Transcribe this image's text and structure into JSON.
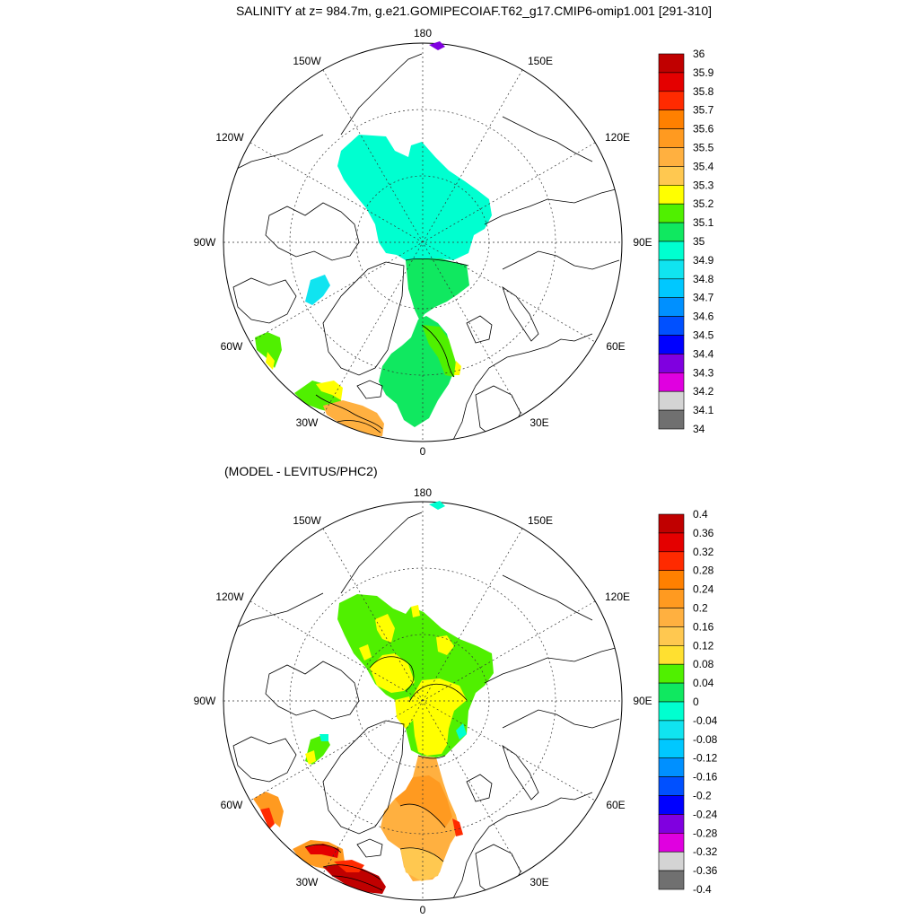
{
  "title": "SALINITY at z= 984.7m, g.e21.GOMIPECOIAF.T62_g17.CMIP6-omip1.001 [291-310]",
  "subtitle": "(MODEL - LEVITUS/PHC2)",
  "longitude_labels": [
    "180",
    "150E",
    "120E",
    "90E",
    "60E",
    "30E",
    "0",
    "30W",
    "60W",
    "90W",
    "120W",
    "150W"
  ],
  "top_panel": {
    "colorbar": {
      "labels": [
        "36",
        "35.9",
        "35.8",
        "35.7",
        "35.6",
        "35.5",
        "35.4",
        "35.3",
        "35.2",
        "35.1",
        "35",
        "34.9",
        "34.8",
        "34.7",
        "34.6",
        "34.5",
        "34.4",
        "34.3",
        "34.2",
        "34.1",
        "34"
      ],
      "colors": [
        "#c00000",
        "#e40000",
        "#ff2a00",
        "#ff8000",
        "#ff9a20",
        "#ffb040",
        "#ffc850",
        "#ffff00",
        "#50f000",
        "#10e860",
        "#00ffd0",
        "#10e4f0",
        "#00c8ff",
        "#0090ff",
        "#0050ff",
        "#0000ff",
        "#8000e0",
        "#e000e0",
        "#d4d4d4",
        "#707070"
      ]
    }
  },
  "bottom_panel": {
    "colorbar": {
      "labels": [
        "0.4",
        "0.36",
        "0.32",
        "0.28",
        "0.24",
        "0.2",
        "0.16",
        "0.12",
        "0.08",
        "0.04",
        "0",
        "-0.04",
        "-0.08",
        "-0.12",
        "-0.16",
        "-0.2",
        "-0.24",
        "-0.28",
        "-0.32",
        "-0.36",
        "-0.4"
      ],
      "colors": [
        "#c00000",
        "#e40000",
        "#ff2a00",
        "#ff8000",
        "#ff9a20",
        "#ffb040",
        "#ffc850",
        "#ffe030",
        "#50f000",
        "#10e860",
        "#00ffd0",
        "#10e4f0",
        "#00c8ff",
        "#0090ff",
        "#0050ff",
        "#0000ff",
        "#8000e0",
        "#e000e0",
        "#d4d4d4",
        "#707070"
      ]
    }
  },
  "colors": {
    "contour": "#000000",
    "grid": "#333333"
  }
}
